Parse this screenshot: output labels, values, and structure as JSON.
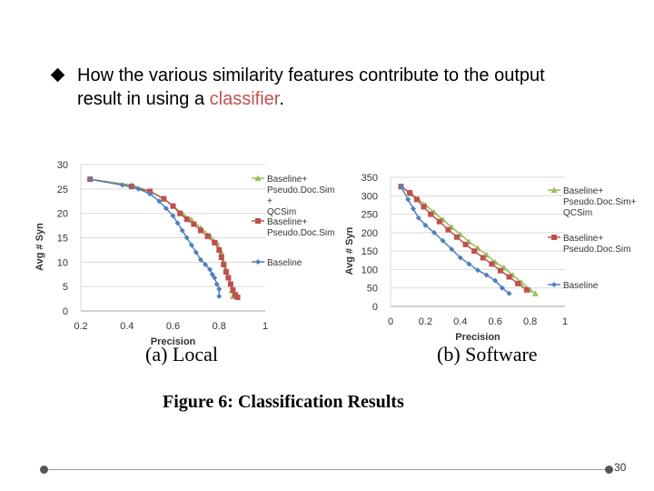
{
  "slide": {
    "bullet_text_before": "How the various similarity features contribute to the output",
    "bullet_line2_before": "result in using a ",
    "bullet_highlight": "classifier",
    "bullet_after": ".",
    "figure_caption": "Figure 6:  Classification Results",
    "page_number": "30",
    "accent_color": "#c0504d"
  },
  "chart_data": [
    {
      "type": "line",
      "caption": "(a) Local",
      "xlabel": "Precision",
      "ylabel": "Avg # Syn",
      "xlim": [
        0.2,
        1
      ],
      "ylim": [
        0,
        30
      ],
      "xticks": [
        "0.2",
        "0.4",
        "0.6",
        "0.8",
        "1"
      ],
      "yticks": [
        "0",
        "5",
        "10",
        "15",
        "20",
        "25",
        "30"
      ],
      "grid": true,
      "legend_position": "right",
      "series": [
        {
          "name": "Baseline+ Pseudo.Doc.Sim + QCSim",
          "color": "#9bbb59",
          "marker": "triangle",
          "x": [
            0.24,
            0.42,
            0.5,
            0.56,
            0.6,
            0.64,
            0.68,
            0.72,
            0.76,
            0.79,
            0.81,
            0.82,
            0.83,
            0.84,
            0.85,
            0.855,
            0.86
          ],
          "y": [
            27,
            25.8,
            24.5,
            23,
            21.5,
            20,
            18.7,
            17,
            15.5,
            14,
            12,
            10,
            8.5,
            7,
            5.5,
            4.2,
            3
          ]
        },
        {
          "name": "Baseline+ Pseudo.Doc.Sim",
          "color": "#c0504d",
          "marker": "square",
          "x": [
            0.24,
            0.42,
            0.5,
            0.56,
            0.6,
            0.63,
            0.66,
            0.69,
            0.72,
            0.75,
            0.78,
            0.8,
            0.81,
            0.82,
            0.83,
            0.84,
            0.85,
            0.86,
            0.87,
            0.88
          ],
          "y": [
            27,
            25.5,
            24.5,
            23,
            21.5,
            20,
            18.8,
            17.8,
            16.5,
            15.3,
            14,
            12.5,
            11,
            9.5,
            8,
            6.8,
            5.5,
            4.3,
            3.3,
            2.8
          ]
        },
        {
          "name": "Baseline",
          "color": "#4f81bd",
          "marker": "diamond",
          "x": [
            0.24,
            0.38,
            0.45,
            0.5,
            0.54,
            0.57,
            0.6,
            0.62,
            0.64,
            0.66,
            0.68,
            0.7,
            0.72,
            0.74,
            0.76,
            0.77,
            0.78,
            0.79,
            0.8,
            0.8
          ],
          "y": [
            27,
            25.8,
            25,
            24,
            22.5,
            21,
            19.5,
            18,
            16.5,
            15,
            13.5,
            12,
            10.5,
            9.5,
            8.5,
            7.5,
            6.8,
            5.5,
            4.5,
            3
          ]
        }
      ]
    },
    {
      "type": "line",
      "caption": "(b) Software",
      "xlabel": "Precision",
      "ylabel": "Avg # Syn",
      "xlim": [
        0,
        1
      ],
      "ylim": [
        0,
        350
      ],
      "xticks": [
        "0",
        "0.2",
        "0.4",
        "0.6",
        "0.8",
        "1"
      ],
      "yticks": [
        "0",
        "50",
        "100",
        "150",
        "200",
        "250",
        "300",
        "350"
      ],
      "grid": true,
      "legend_position": "right",
      "series": [
        {
          "name": "Baseline+ Pseudo.Doc.Sim+ QCSim",
          "color": "#9bbb59",
          "marker": "triangle",
          "x": [
            0.06,
            0.12,
            0.16,
            0.2,
            0.25,
            0.3,
            0.35,
            0.4,
            0.45,
            0.5,
            0.55,
            0.6,
            0.65,
            0.7,
            0.75,
            0.8,
            0.83
          ],
          "y": [
            325,
            305,
            290,
            275,
            255,
            235,
            215,
            195,
            175,
            158,
            140,
            120,
            105,
            85,
            65,
            45,
            35
          ]
        },
        {
          "name": "Baseline+ Pseudo.Doc.Sim",
          "color": "#c0504d",
          "marker": "square",
          "x": [
            0.06,
            0.11,
            0.15,
            0.19,
            0.23,
            0.28,
            0.33,
            0.38,
            0.43,
            0.48,
            0.53,
            0.58,
            0.63,
            0.68,
            0.73,
            0.78
          ],
          "y": [
            325,
            308,
            290,
            270,
            250,
            230,
            208,
            188,
            168,
            150,
            132,
            115,
            97,
            80,
            62,
            45
          ]
        },
        {
          "name": "Baseline",
          "color": "#4f81bd",
          "marker": "diamond",
          "x": [
            0.06,
            0.1,
            0.13,
            0.16,
            0.2,
            0.25,
            0.3,
            0.35,
            0.4,
            0.45,
            0.5,
            0.55,
            0.6,
            0.64,
            0.68
          ],
          "y": [
            325,
            290,
            265,
            240,
            220,
            200,
            178,
            155,
            132,
            115,
            98,
            85,
            70,
            50,
            35
          ]
        }
      ]
    }
  ]
}
